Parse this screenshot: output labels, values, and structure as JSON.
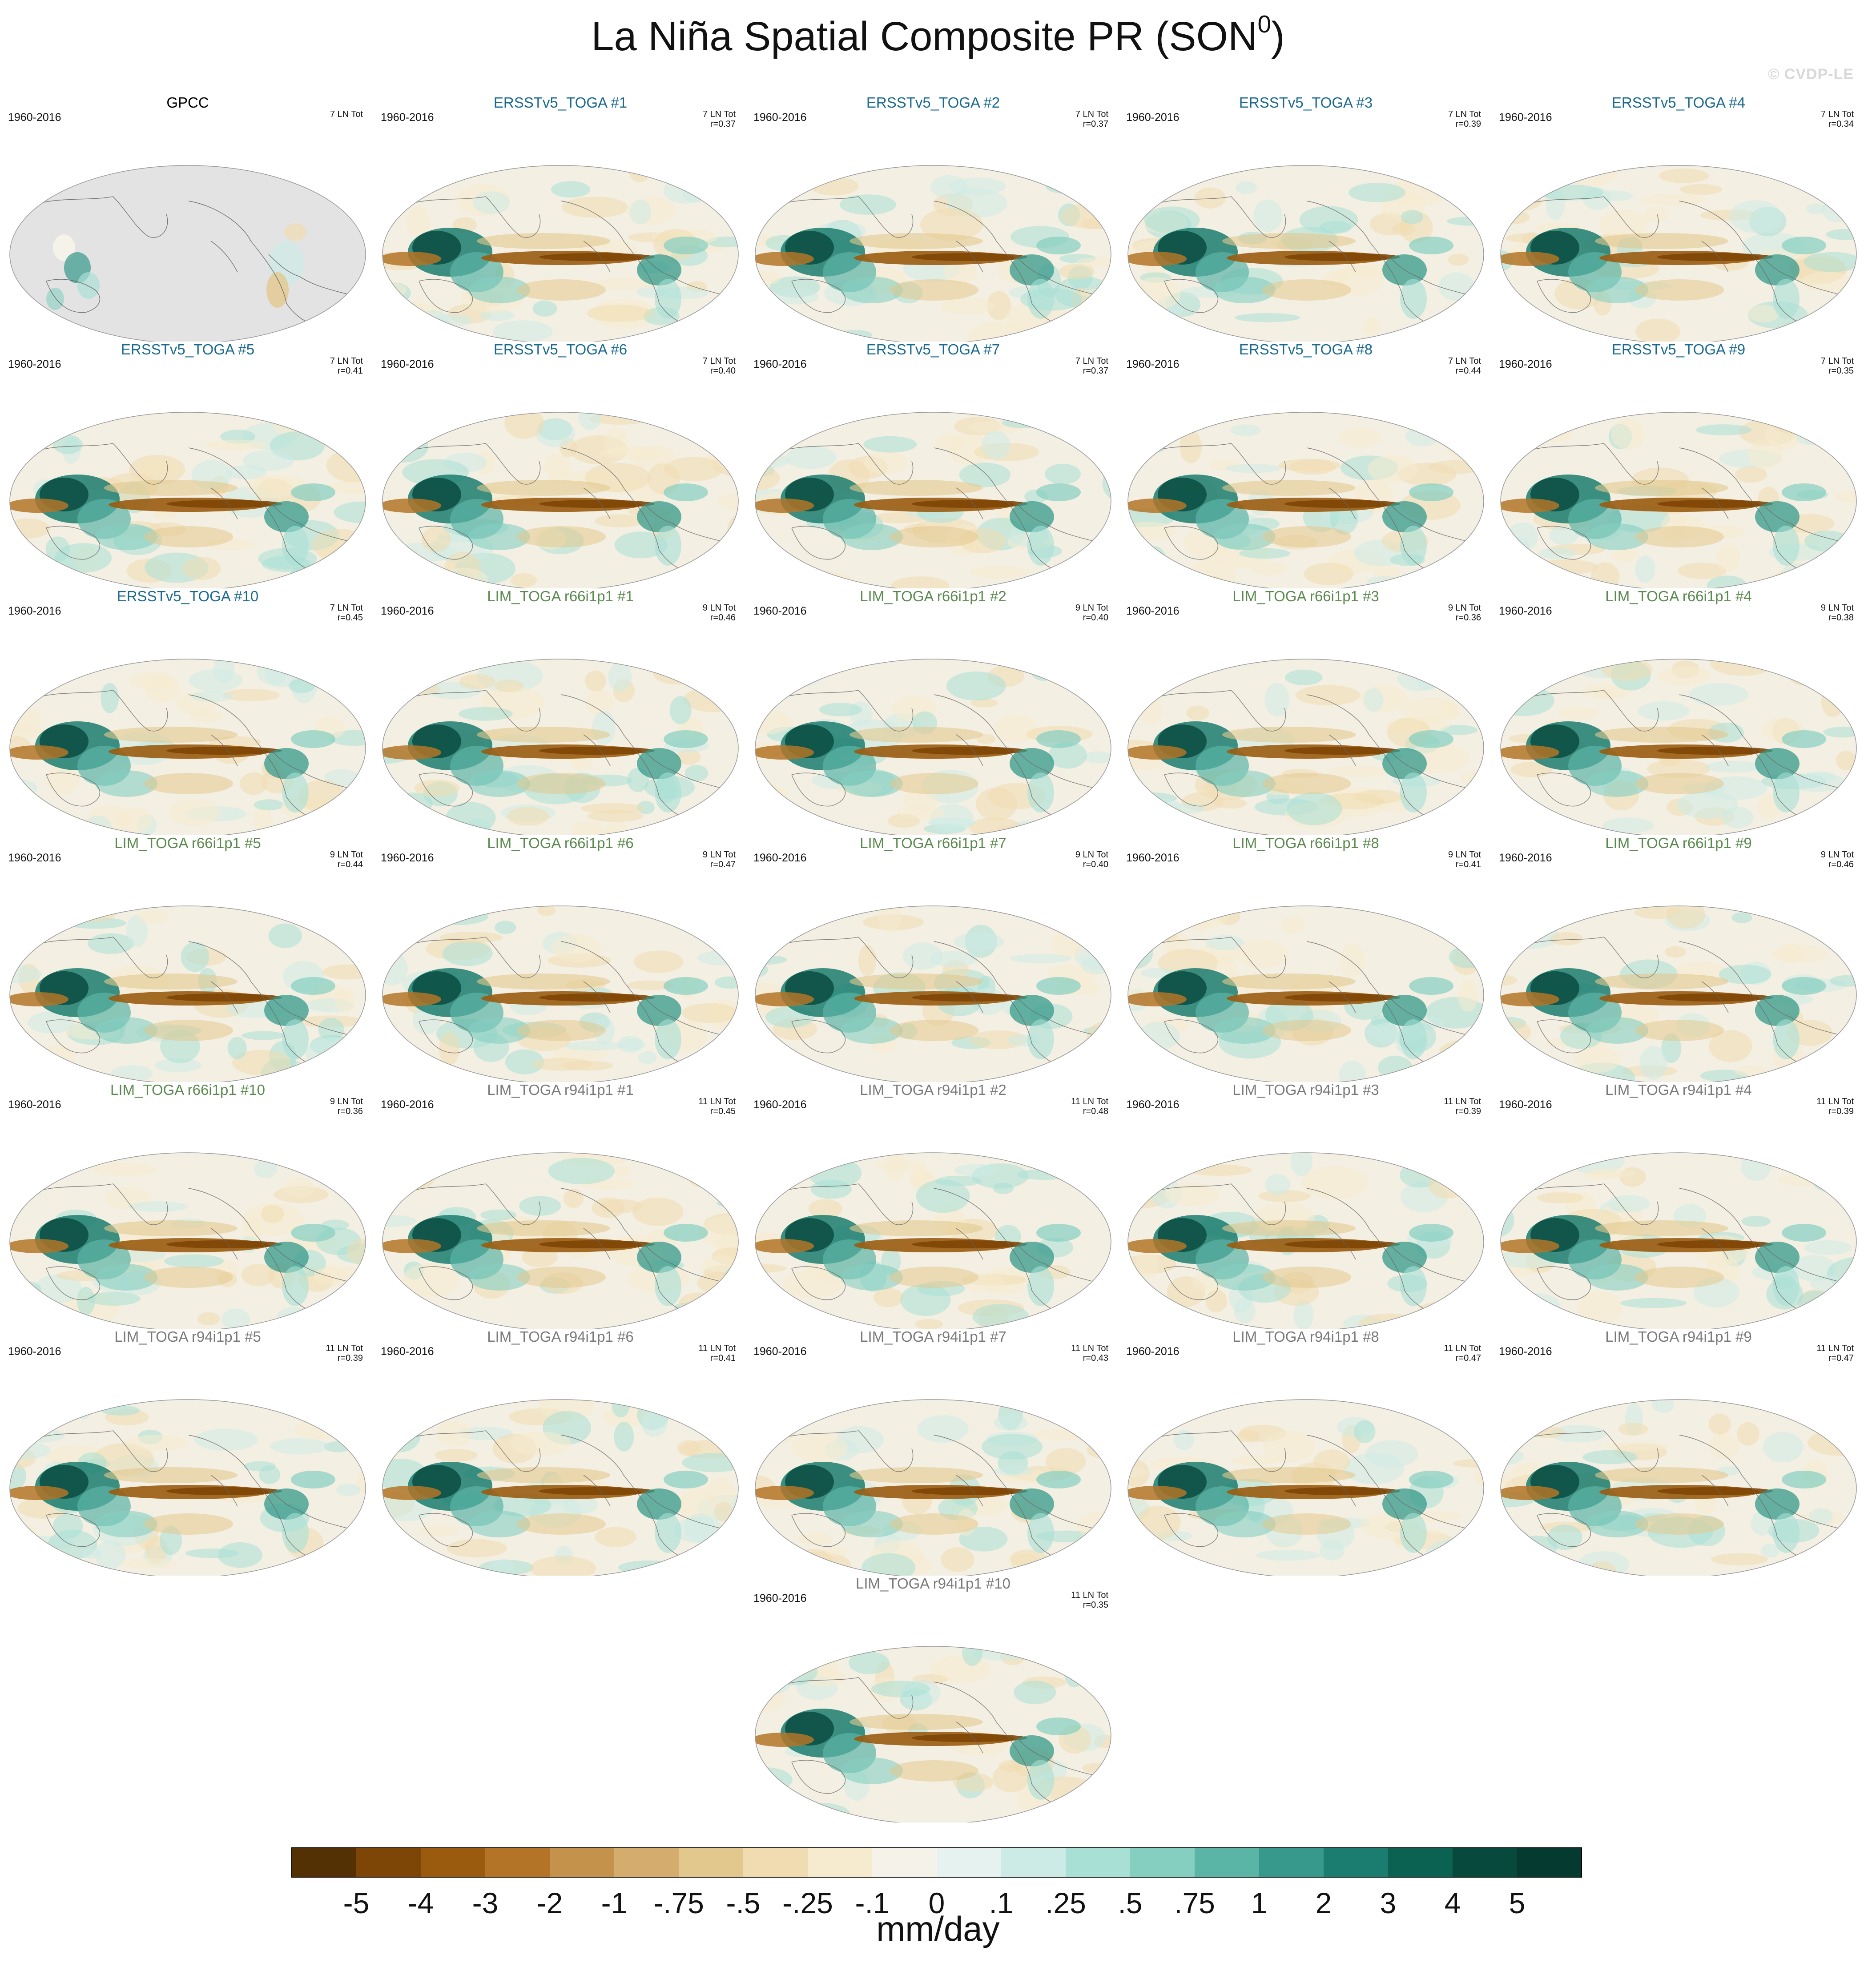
{
  "title_main": "La Niña Spatial Composite PR (SON",
  "title_sup": "0",
  "title_end": ")",
  "watermark": "© CVDP-LE",
  "units": "mm/day",
  "chart_data": {
    "type": "heatmap",
    "title": "La Niña Spatial Composite PR (SON0)",
    "period": "1960-2016",
    "colorbar": {
      "labels": [
        "-5",
        "-4",
        "-3",
        "-2",
        "-1",
        "-.75",
        "-.5",
        "-.25",
        "-.1",
        "0",
        ".1",
        ".25",
        ".5",
        ".75",
        "1",
        "2",
        "3",
        "4",
        "5"
      ],
      "colors": [
        "#543005",
        "#7d4506",
        "#9a5b0f",
        "#b37428",
        "#c4924a",
        "#d4ad6e",
        "#e3c88e",
        "#f0dcb0",
        "#f6ebcf",
        "#f5f2ea",
        "#e6f2f0",
        "#cdebe6",
        "#a9e0d6",
        "#85cfc1",
        "#5bb5a7",
        "#36998b",
        "#1b7d6f",
        "#0b6253",
        "#07493d",
        "#043a30"
      ]
    },
    "panels": [
      {
        "title": "GPCC",
        "years": "1960-2016",
        "count": "7 LN Tot",
        "r": "",
        "color": "#000000",
        "kind": "obs"
      },
      {
        "title": "ERSSTv5_TOGA #1",
        "years": "1960-2016",
        "count": "7 LN Tot",
        "r": "r=0.37",
        "color": "#1a6a8e",
        "kind": "model"
      },
      {
        "title": "ERSSTv5_TOGA #2",
        "years": "1960-2016",
        "count": "7 LN Tot",
        "r": "r=0.37",
        "color": "#1a6a8e",
        "kind": "model"
      },
      {
        "title": "ERSSTv5_TOGA #3",
        "years": "1960-2016",
        "count": "7 LN Tot",
        "r": "r=0.39",
        "color": "#1a6a8e",
        "kind": "model"
      },
      {
        "title": "ERSSTv5_TOGA #4",
        "years": "1960-2016",
        "count": "7 LN Tot",
        "r": "r=0.34",
        "color": "#1a6a8e",
        "kind": "model"
      },
      {
        "title": "ERSSTv5_TOGA #5",
        "years": "1960-2016",
        "count": "7 LN Tot",
        "r": "r=0.41",
        "color": "#1a6a8e",
        "kind": "model"
      },
      {
        "title": "ERSSTv5_TOGA #6",
        "years": "1960-2016",
        "count": "7 LN Tot",
        "r": "r=0.40",
        "color": "#1a6a8e",
        "kind": "model"
      },
      {
        "title": "ERSSTv5_TOGA #7",
        "years": "1960-2016",
        "count": "7 LN Tot",
        "r": "r=0.37",
        "color": "#1a6a8e",
        "kind": "model"
      },
      {
        "title": "ERSSTv5_TOGA #8",
        "years": "1960-2016",
        "count": "7 LN Tot",
        "r": "r=0.44",
        "color": "#1a6a8e",
        "kind": "model"
      },
      {
        "title": "ERSSTv5_TOGA #9",
        "years": "1960-2016",
        "count": "7 LN Tot",
        "r": "r=0.35",
        "color": "#1a6a8e",
        "kind": "model"
      },
      {
        "title": "ERSSTv5_TOGA #10",
        "years": "1960-2016",
        "count": "7 LN Tot",
        "r": "r=0.45",
        "color": "#1a6a8e",
        "kind": "model"
      },
      {
        "title": "LIM_TOGA r66i1p1 #1",
        "years": "1960-2016",
        "count": "9 LN Tot",
        "r": "r=0.46",
        "color": "#5a8a4e",
        "kind": "model"
      },
      {
        "title": "LIM_TOGA r66i1p1 #2",
        "years": "1960-2016",
        "count": "9 LN Tot",
        "r": "r=0.40",
        "color": "#5a8a4e",
        "kind": "model"
      },
      {
        "title": "LIM_TOGA r66i1p1 #3",
        "years": "1960-2016",
        "count": "9 LN Tot",
        "r": "r=0.36",
        "color": "#5a8a4e",
        "kind": "model"
      },
      {
        "title": "LIM_TOGA r66i1p1 #4",
        "years": "1960-2016",
        "count": "9 LN Tot",
        "r": "r=0.38",
        "color": "#5a8a4e",
        "kind": "model"
      },
      {
        "title": "LIM_TOGA r66i1p1 #5",
        "years": "1960-2016",
        "count": "9 LN Tot",
        "r": "r=0.44",
        "color": "#5a8a4e",
        "kind": "model"
      },
      {
        "title": "LIM_TOGA r66i1p1 #6",
        "years": "1960-2016",
        "count": "9 LN Tot",
        "r": "r=0.47",
        "color": "#5a8a4e",
        "kind": "model"
      },
      {
        "title": "LIM_TOGA r66i1p1 #7",
        "years": "1960-2016",
        "count": "9 LN Tot",
        "r": "r=0.40",
        "color": "#5a8a4e",
        "kind": "model"
      },
      {
        "title": "LIM_TOGA r66i1p1 #8",
        "years": "1960-2016",
        "count": "9 LN Tot",
        "r": "r=0.41",
        "color": "#5a8a4e",
        "kind": "model"
      },
      {
        "title": "LIM_TOGA r66i1p1 #9",
        "years": "1960-2016",
        "count": "9 LN Tot",
        "r": "r=0.46",
        "color": "#5a8a4e",
        "kind": "model"
      },
      {
        "title": "LIM_TOGA r66i1p1 #10",
        "years": "1960-2016",
        "count": "9 LN Tot",
        "r": "r=0.36",
        "color": "#5a8a4e",
        "kind": "model"
      },
      {
        "title": "LIM_TOGA r94i1p1 #1",
        "years": "1960-2016",
        "count": "11 LN Tot",
        "r": "r=0.45",
        "color": "#7a7a7a",
        "kind": "model"
      },
      {
        "title": "LIM_TOGA r94i1p1 #2",
        "years": "1960-2016",
        "count": "11 LN Tot",
        "r": "r=0.48",
        "color": "#7a7a7a",
        "kind": "model"
      },
      {
        "title": "LIM_TOGA r94i1p1 #3",
        "years": "1960-2016",
        "count": "11 LN Tot",
        "r": "r=0.39",
        "color": "#7a7a7a",
        "kind": "model"
      },
      {
        "title": "LIM_TOGA r94i1p1 #4",
        "years": "1960-2016",
        "count": "11 LN Tot",
        "r": "r=0.39",
        "color": "#7a7a7a",
        "kind": "model"
      },
      {
        "title": "LIM_TOGA r94i1p1 #5",
        "years": "1960-2016",
        "count": "11 LN Tot",
        "r": "r=0.39",
        "color": "#7a7a7a",
        "kind": "model"
      },
      {
        "title": "LIM_TOGA r94i1p1 #6",
        "years": "1960-2016",
        "count": "11 LN Tot",
        "r": "r=0.41",
        "color": "#7a7a7a",
        "kind": "model"
      },
      {
        "title": "LIM_TOGA r94i1p1 #7",
        "years": "1960-2016",
        "count": "11 LN Tot",
        "r": "r=0.43",
        "color": "#7a7a7a",
        "kind": "model"
      },
      {
        "title": "LIM_TOGA r94i1p1 #8",
        "years": "1960-2016",
        "count": "11 LN Tot",
        "r": "r=0.47",
        "color": "#7a7a7a",
        "kind": "model"
      },
      {
        "title": "LIM_TOGA r94i1p1 #9",
        "years": "1960-2016",
        "count": "11 LN Tot",
        "r": "r=0.47",
        "color": "#7a7a7a",
        "kind": "model"
      },
      {
        "title": "LIM_TOGA r94i1p1 #10",
        "years": "1960-2016",
        "count": "11 LN Tot",
        "r": "r=0.35",
        "color": "#7a7a7a",
        "kind": "model"
      }
    ]
  }
}
